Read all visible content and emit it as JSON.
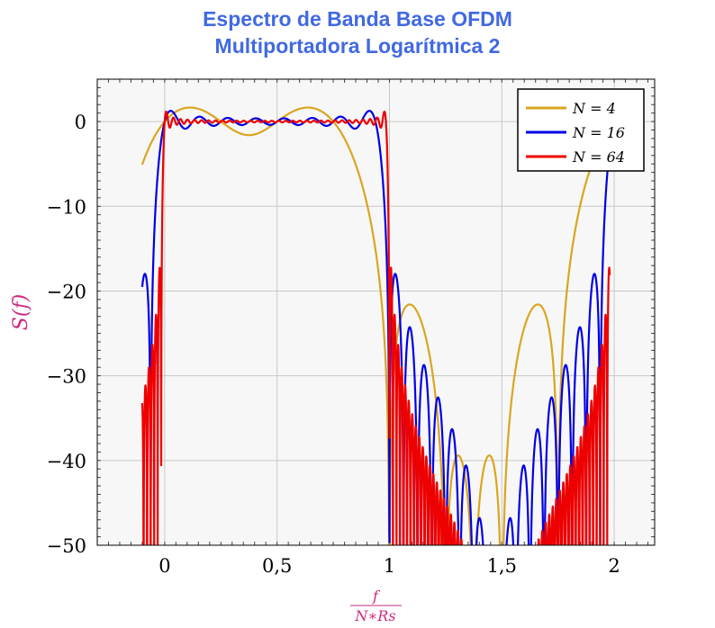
{
  "chart_data": {
    "type": "line",
    "title": [
      "Espectro de Banda Base OFDM",
      "Multiportadora Logarítmica 2"
    ],
    "xlabel_num": "f",
    "xlabel_den": "N∗Rs",
    "ylabel": "S(f)",
    "xlim": [
      -0.3,
      2.18
    ],
    "ylim": [
      -50,
      5
    ],
    "xticks": [
      0,
      0.5,
      1,
      1.5,
      2
    ],
    "xtick_labels": [
      "0",
      "0,5",
      "1",
      "1,5",
      "2"
    ],
    "yticks": [
      0,
      -10,
      -20,
      -30,
      -40,
      -50
    ],
    "ytick_labels": [
      "0",
      "−10",
      "−20",
      "−30",
      "−40",
      "−50"
    ],
    "grid": true,
    "legend_position": "top-right",
    "x_range": [
      -0.1,
      1.98
    ],
    "series": [
      {
        "name": "N = 4",
        "N": 4,
        "color": "#DAA520"
      },
      {
        "name": "N = 16",
        "N": 16,
        "color": "#0000E6"
      },
      {
        "name": "N = 64",
        "N": 64,
        "color": "#EE0000"
      }
    ]
  }
}
